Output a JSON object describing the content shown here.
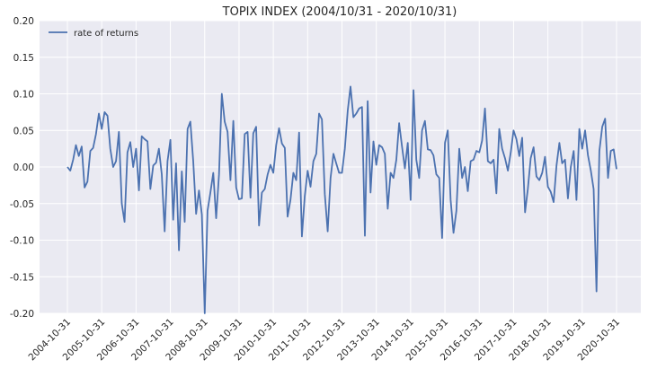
{
  "chart_data": {
    "type": "line",
    "title": "TOPIX INDEX (2004/10/31 - 2020/10/31)",
    "xlabel": "",
    "ylabel": "",
    "ylim": [
      -0.2,
      0.2
    ],
    "yticks": [
      "-0.20",
      "-0.15",
      "-0.10",
      "-0.05",
      "0.00",
      "0.05",
      "0.10",
      "0.15",
      "0.20"
    ],
    "xticks": [
      "2004-10-31",
      "2005-10-31",
      "2006-10-31",
      "2007-10-31",
      "2008-10-31",
      "2009-10-31",
      "2010-10-31",
      "2011-10-31",
      "2012-10-31",
      "2013-10-31",
      "2014-10-31",
      "2015-10-31",
      "2016-10-31",
      "2017-10-31",
      "2018-10-31",
      "2019-10-31",
      "2020-10-31"
    ],
    "x_start": "2004-10-31",
    "frequency": "monthly",
    "legend": "top-left",
    "grid": true,
    "colors": {
      "background": "#eaeaf2",
      "grid": "#ffffff",
      "line": "#4c72b0"
    },
    "series": [
      {
        "name": "rate of returns",
        "values": [
          0.0,
          -0.005,
          0.01,
          0.03,
          0.015,
          0.028,
          -0.028,
          -0.02,
          0.022,
          0.026,
          0.045,
          0.073,
          0.052,
          0.075,
          0.07,
          0.025,
          0.0,
          0.008,
          0.048,
          -0.05,
          -0.075,
          0.02,
          0.034,
          0.0,
          0.025,
          -0.032,
          0.042,
          0.038,
          0.035,
          -0.03,
          0.002,
          0.006,
          0.025,
          -0.01,
          -0.088,
          0.008,
          0.037,
          -0.072,
          0.005,
          -0.114,
          -0.006,
          -0.075,
          0.052,
          0.062,
          0.008,
          -0.064,
          -0.032,
          -0.065,
          -0.2,
          -0.06,
          -0.035,
          -0.008,
          -0.07,
          -0.01,
          0.1,
          0.062,
          0.048,
          -0.018,
          0.063,
          -0.028,
          -0.044,
          -0.043,
          0.045,
          0.048,
          -0.042,
          0.046,
          0.055,
          -0.08,
          -0.035,
          -0.03,
          -0.01,
          0.003,
          -0.008,
          0.03,
          0.053,
          0.032,
          0.026,
          -0.068,
          -0.045,
          -0.008,
          -0.018,
          0.047,
          -0.095,
          -0.04,
          -0.005,
          -0.027,
          0.008,
          0.018,
          0.073,
          0.065,
          -0.037,
          -0.088,
          -0.015,
          0.018,
          0.005,
          -0.008,
          -0.008,
          0.025,
          0.077,
          0.11,
          0.068,
          0.073,
          0.08,
          0.082,
          -0.094,
          0.09,
          -0.035,
          0.035,
          0.003,
          0.03,
          0.027,
          0.018,
          -0.057,
          -0.008,
          -0.015,
          0.01,
          0.06,
          0.028,
          -0.002,
          0.033,
          -0.045,
          0.105,
          0.01,
          -0.015,
          0.05,
          0.063,
          0.024,
          0.023,
          0.016,
          -0.01,
          -0.015,
          -0.097,
          0.033,
          0.05,
          -0.045,
          -0.09,
          -0.06,
          0.025,
          -0.015,
          0.0,
          -0.033,
          0.008,
          0.01,
          0.022,
          0.02,
          0.036,
          0.08,
          0.008,
          0.005,
          0.01,
          -0.036,
          0.052,
          0.025,
          0.012,
          -0.005,
          0.02,
          0.05,
          0.038,
          0.015,
          0.04,
          -0.062,
          -0.03,
          0.012,
          0.027,
          -0.013,
          -0.018,
          -0.008,
          0.014,
          -0.027,
          -0.034,
          -0.048,
          0.002,
          0.033,
          0.005,
          0.01,
          -0.043,
          0.0,
          0.022,
          -0.045,
          0.052,
          0.025,
          0.05,
          0.016,
          -0.005,
          -0.03,
          -0.17,
          0.022,
          0.055,
          0.066,
          -0.015,
          0.022,
          0.024,
          -0.003
        ]
      }
    ]
  }
}
